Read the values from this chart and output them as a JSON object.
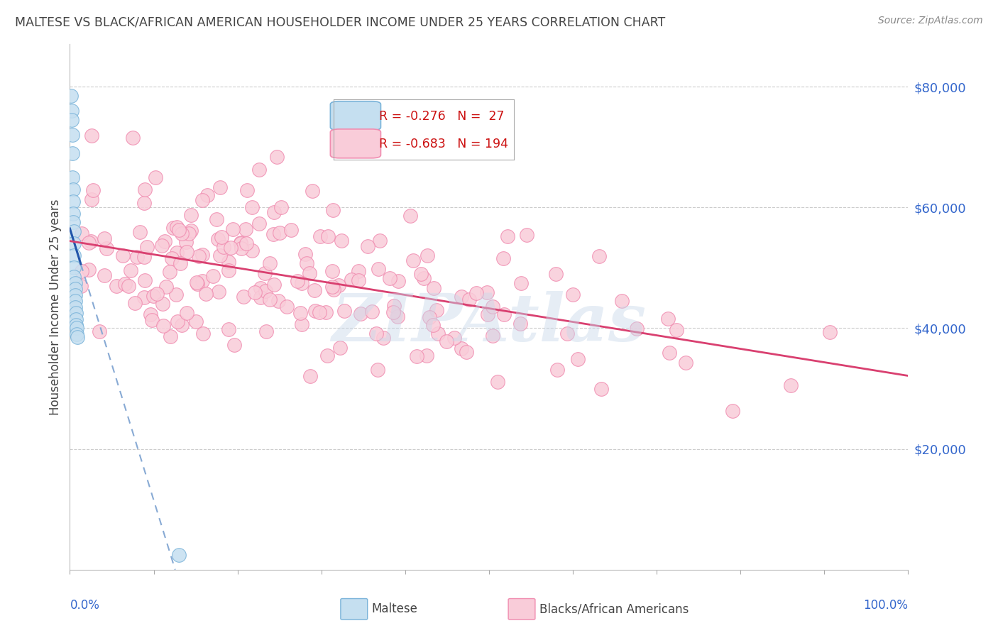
{
  "title": "MALTESE VS BLACK/AFRICAN AMERICAN HOUSEHOLDER INCOME UNDER 25 YEARS CORRELATION CHART",
  "source": "Source: ZipAtlas.com",
  "ylabel": "Householder Income Under 25 years",
  "ytick_labels": [
    "$20,000",
    "$40,000",
    "$60,000",
    "$80,000"
  ],
  "ytick_values": [
    20000,
    40000,
    60000,
    80000
  ],
  "ymin": 0,
  "ymax": 87000,
  "xmin": 0.0,
  "xmax": 1.0,
  "legend_r_maltese": "-0.276",
  "legend_n_maltese": "27",
  "legend_r_black": "-0.683",
  "legend_n_black": "194",
  "maltese_edge_color": "#7ab3d9",
  "maltese_face_color": "#c5dff0",
  "black_edge_color": "#f08cb0",
  "black_face_color": "#f9ccd9",
  "trendline_maltese_solid_color": "#2255aa",
  "trendline_maltese_dash_color": "#88aad4",
  "trendline_black_color": "#d94070",
  "watermark": "ZIPAtlas",
  "background_color": "#ffffff",
  "grid_color": "#cccccc",
  "tick_color": "#3366cc",
  "title_color": "#444444",
  "label_color": "#444444",
  "source_color": "#888888"
}
